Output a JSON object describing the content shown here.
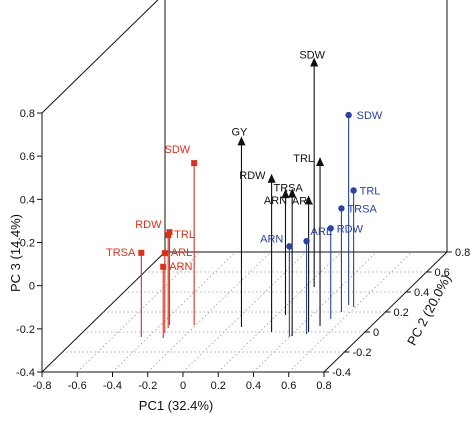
{
  "chart_data": {
    "type": "scatter",
    "subtype": "3d-scatter-with-drop-lines",
    "title": "",
    "xlabel": "PC1 (32.4%)",
    "ylabel": "PC 2 (20.0%)",
    "zlabel": "PC 3 (14.4%)",
    "x_ticks": [
      "-0.8",
      "-0.6",
      "-0.4",
      "-0.2",
      "0",
      "0.2",
      "0.4",
      "0.6",
      "0.8"
    ],
    "y_ticks": [
      "-0.4",
      "-0.2",
      "0",
      "0.2",
      "0.4",
      "0.6",
      "0.8"
    ],
    "z_ticks": [
      "-0.4",
      "-0.2",
      "0",
      "0.2",
      "0.4",
      "0.6",
      "0.8"
    ],
    "xlim": [
      -0.8,
      0.8
    ],
    "ylim": [
      -0.4,
      0.8
    ],
    "zlim": [
      -0.4,
      0.8
    ],
    "grid": false,
    "series": [
      {
        "color": "#d8311f",
        "marker": "square",
        "points": [
          {
            "label": "SDW",
            "x": -0.21,
            "y": 0.07,
            "z": 0.35
          },
          {
            "label": "TRL",
            "x": -0.34,
            "y": 0.04,
            "z": 0.03
          },
          {
            "label": "RDW",
            "x": -0.35,
            "y": 0.07,
            "z": 0.03
          },
          {
            "label": "TRSA",
            "x": -0.44,
            "y": -0.05,
            "z": -0.01
          },
          {
            "label": "ARL",
            "x": -0.33,
            "y": -0.01,
            "z": -0.03
          },
          {
            "label": "ARN",
            "x": -0.31,
            "y": -0.06,
            "z": -0.07
          }
        ]
      },
      {
        "color": "#111111",
        "marker": "arrow",
        "points": [
          {
            "label": "SDW",
            "x": 0.25,
            "y": 0.45,
            "z": 0.64
          },
          {
            "label": "GY",
            "x": 0.07,
            "y": 0.05,
            "z": 0.46
          },
          {
            "label": "RDW",
            "x": 0.27,
            "y": 0.0,
            "z": 0.31
          },
          {
            "label": "TRL",
            "x": 0.51,
            "y": 0.06,
            "z": 0.36
          },
          {
            "label": "TRSA",
            "x": 0.41,
            "y": -0.04,
            "z": 0.26
          },
          {
            "label": "ARL",
            "x": 0.48,
            "y": 0.0,
            "z": 0.21
          },
          {
            "label": "ARN",
            "x": 0.25,
            "y": 0.17,
            "z": 0.16
          }
        ]
      },
      {
        "color": "#2a44a0",
        "marker": "circle",
        "points": [
          {
            "label": "SDW",
            "x": 0.55,
            "y": 0.27,
            "z": 0.48
          },
          {
            "label": "TRL",
            "x": 0.59,
            "y": 0.25,
            "z": 0.14
          },
          {
            "label": "TRSA",
            "x": 0.55,
            "y": 0.2,
            "z": 0.08
          },
          {
            "label": "RDW",
            "x": 0.53,
            "y": 0.13,
            "z": 0.02
          },
          {
            "label": "ARL",
            "x": 0.48,
            "y": -0.02,
            "z": 0.03
          },
          {
            "label": "ARN",
            "x": 0.4,
            "y": -0.05,
            "z": 0.02
          }
        ]
      }
    ]
  }
}
